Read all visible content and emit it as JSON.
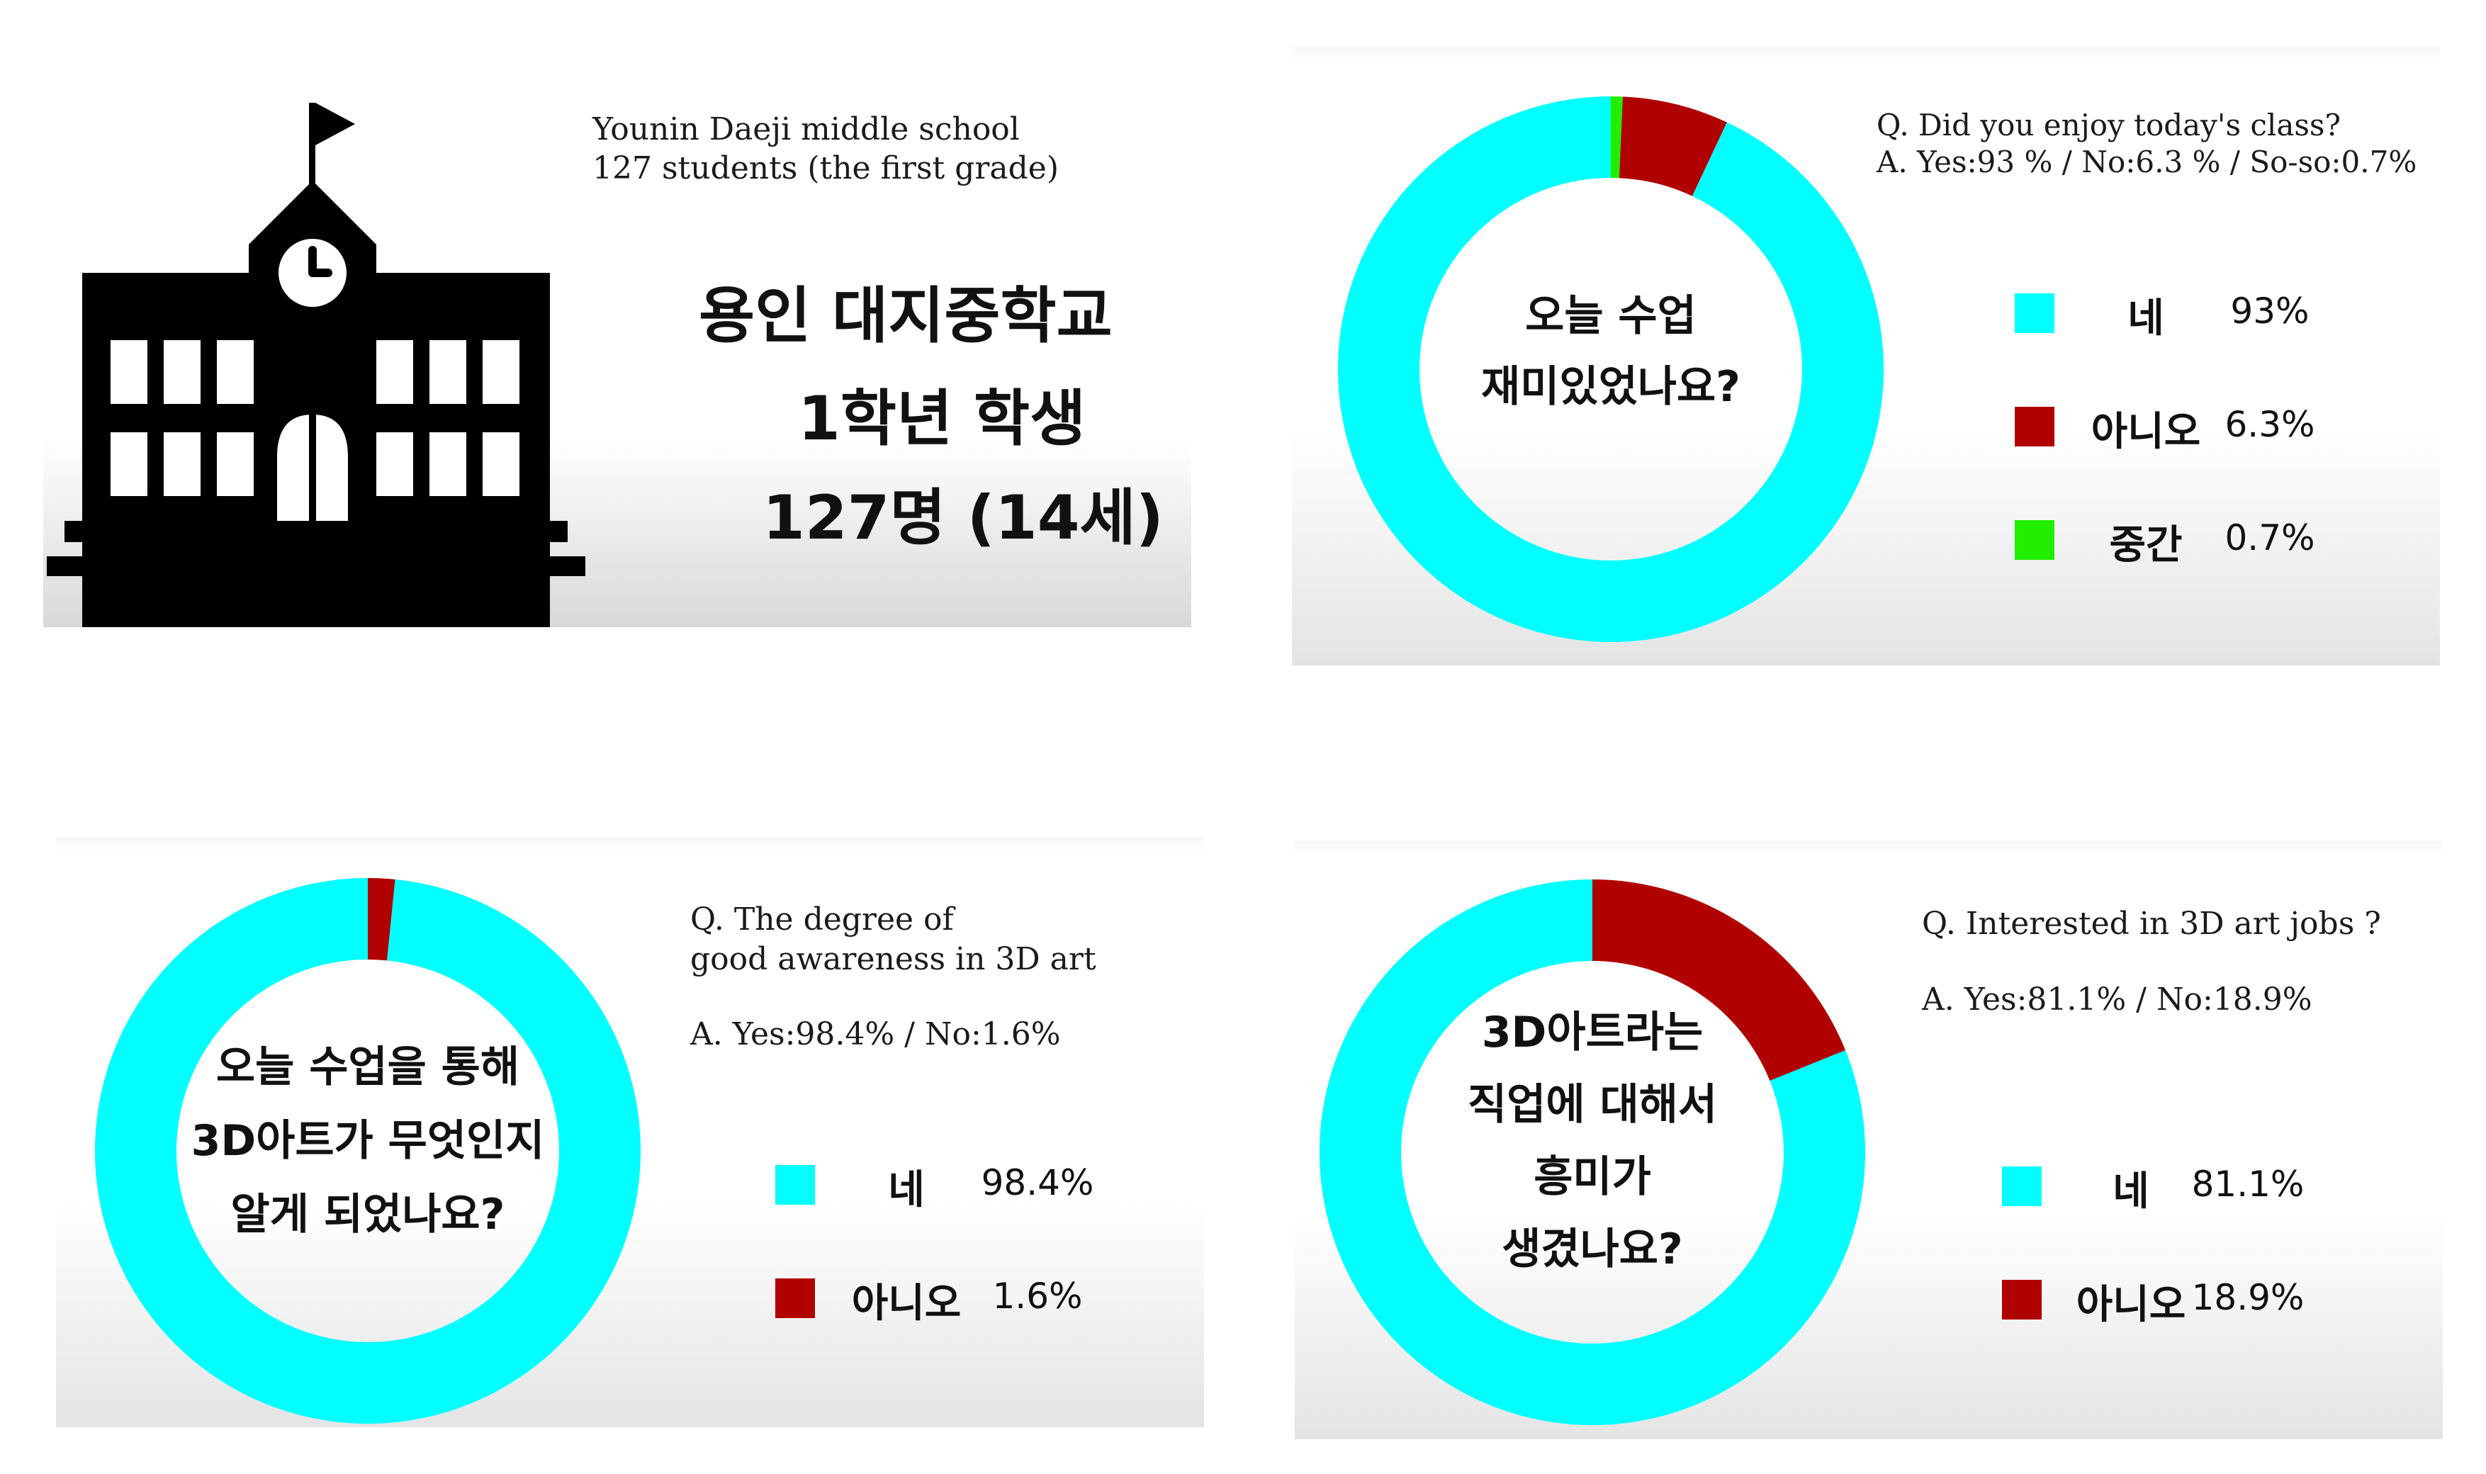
{
  "colors": {
    "yes": "#00ffff",
    "no": "#b00000",
    "soso": "#22ee00",
    "building": "#000000"
  },
  "school": {
    "en_line1": "Younin Daeji middle school",
    "en_line2": "127 students (the first grade)",
    "ko_line1": "용인 대지중학교",
    "ko_line2": "1학년 학생",
    "ko_line3": "127명 (14세)",
    "icon": "school-building-icon"
  },
  "chart_data": [
    {
      "type": "pie",
      "question": "Q. Did you enjoy today's class?",
      "answer": "A. Yes:93 % / No:6.3 % / So-so:0.7%",
      "center_text": [
        "오늘 수업",
        "재미있었나요?"
      ],
      "slices": [
        {
          "label": "네",
          "value": 93,
          "display": "93%",
          "color": "#00ffff"
        },
        {
          "label": "아니오",
          "value": 6.3,
          "display": "6.3%",
          "color": "#b00000"
        },
        {
          "label": "중간",
          "value": 0.7,
          "display": "0.7%",
          "color": "#22ee00"
        }
      ]
    },
    {
      "type": "pie",
      "question": "Q. The degree of\ngood awareness in 3D art",
      "answer": "A. Yes:98.4% / No:1.6%",
      "center_text": [
        "오늘 수업을 통해",
        "3D아트가 무엇인지",
        "알게 되었나요?"
      ],
      "slices": [
        {
          "label": "네",
          "value": 98.4,
          "display": "98.4%",
          "color": "#00ffff"
        },
        {
          "label": "아니오",
          "value": 1.6,
          "display": "1.6%",
          "color": "#b00000"
        }
      ]
    },
    {
      "type": "pie",
      "question": "Q. Interested in 3D art jobs ?",
      "answer": "A. Yes:81.1% / No:18.9%",
      "center_text": [
        "3D아트라는",
        "직업에 대해서",
        "흥미가",
        "생겼나요?"
      ],
      "slices": [
        {
          "label": "네",
          "value": 81.1,
          "display": "81.1%",
          "color": "#00ffff"
        },
        {
          "label": "아니오",
          "value": 18.9,
          "display": "18.9%",
          "color": "#b00000"
        }
      ]
    }
  ]
}
